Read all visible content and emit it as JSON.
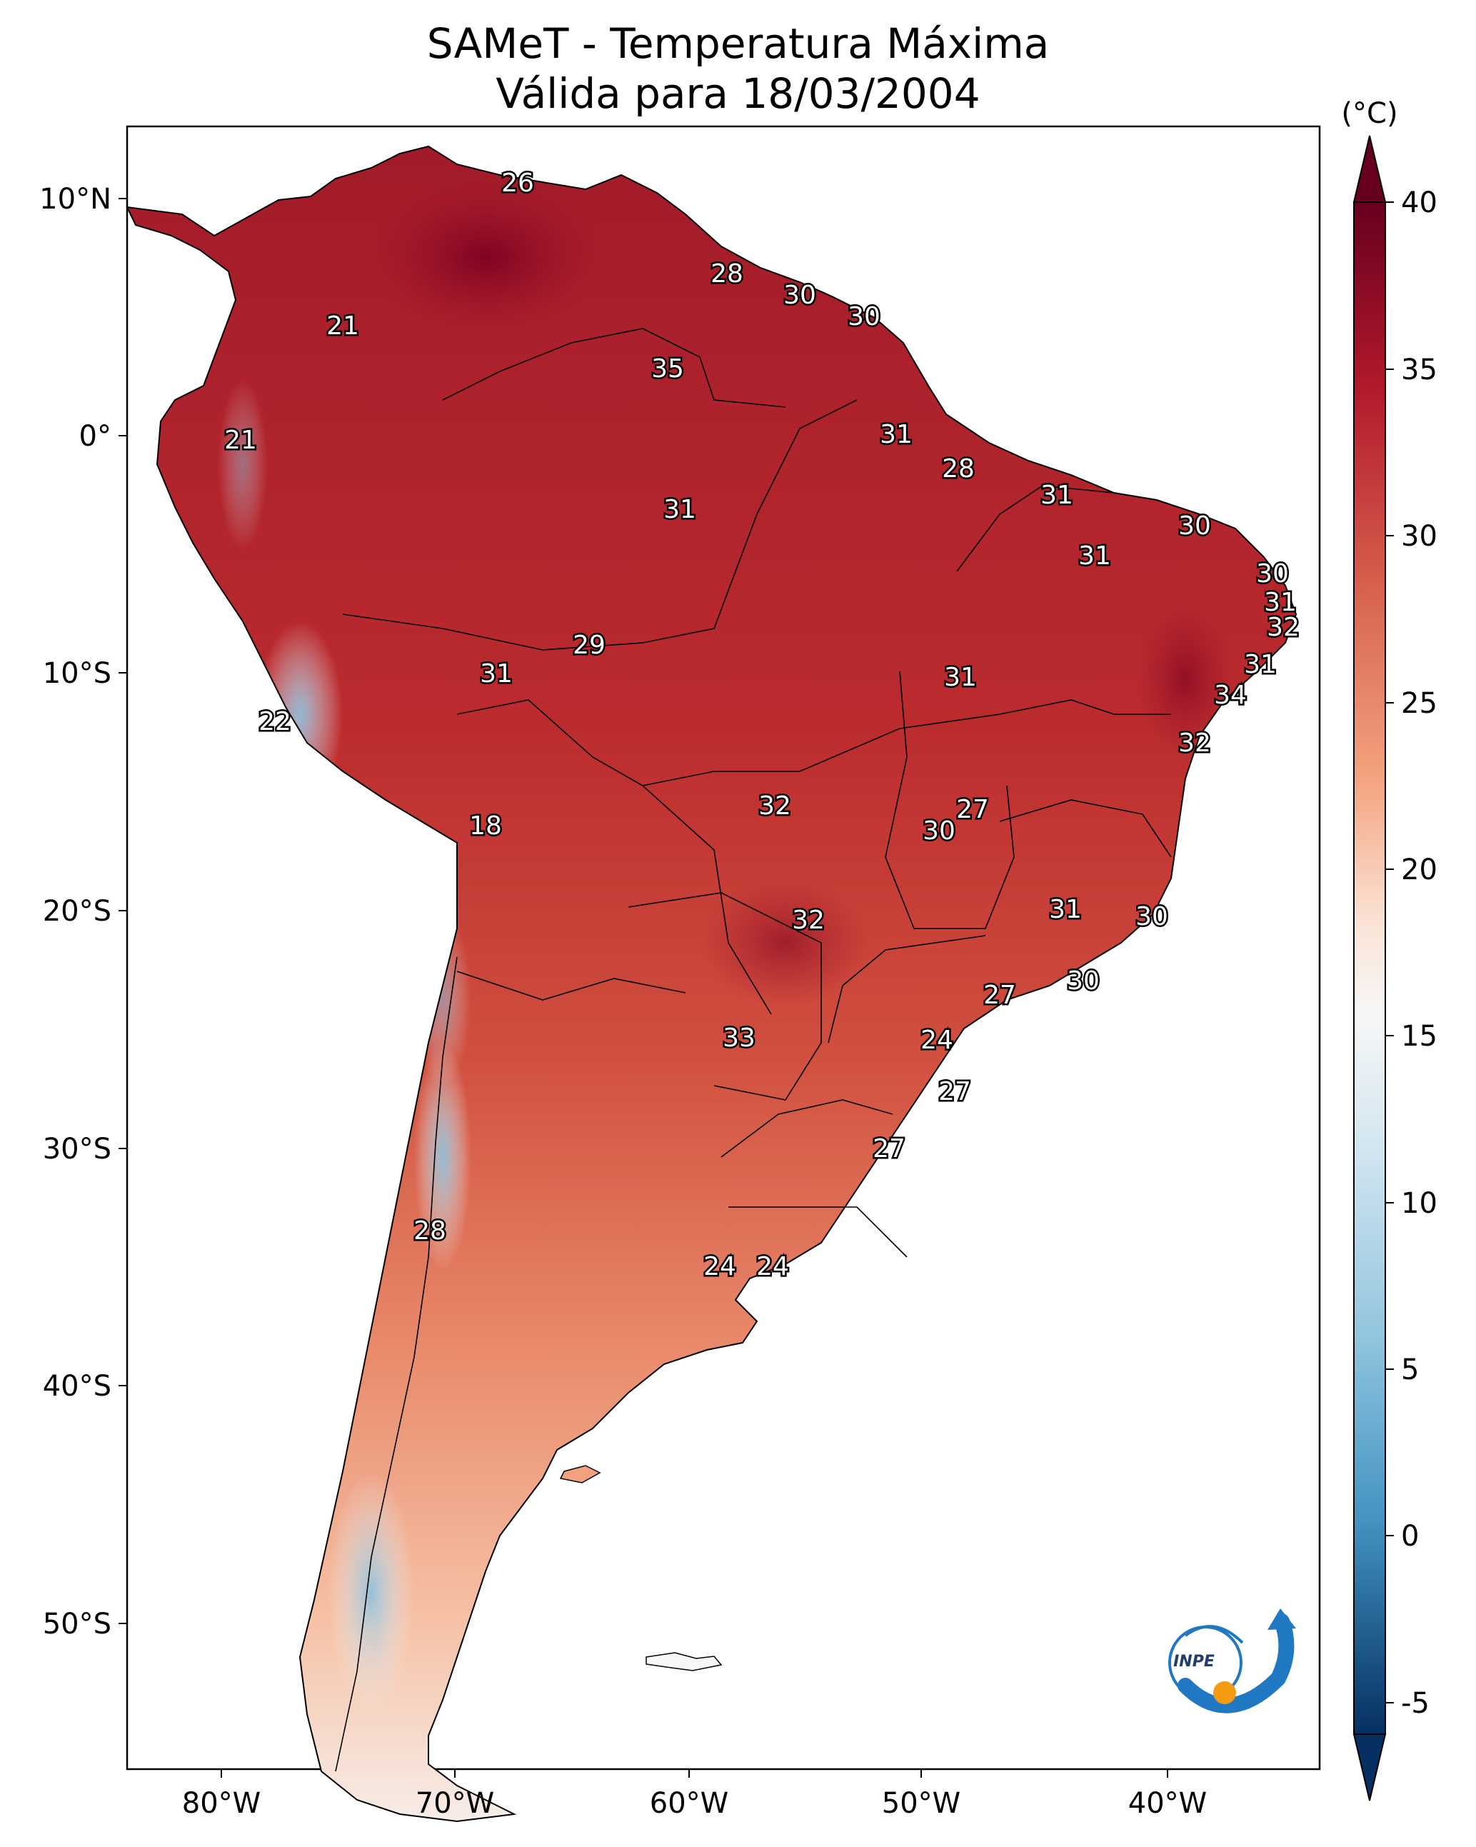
{
  "title_line1": "SAMeT - Temperatura Máxima",
  "title_line2": "Válida para 18/03/2004",
  "colorbar": {
    "unit": "(°C)",
    "ticks": [
      "40",
      "35",
      "30",
      "25",
      "20",
      "15",
      "10",
      "5",
      "0",
      "-5"
    ]
  },
  "axes": {
    "lat_ticks": [
      "10°N",
      "0°",
      "10°S",
      "20°S",
      "30°S",
      "40°S",
      "50°S"
    ],
    "lon_ticks": [
      "80°W",
      "70°W",
      "60°W",
      "50°W",
      "40°W"
    ]
  },
  "contour_labels": [
    "26",
    "28",
    "30",
    "30",
    "21",
    "35",
    "21",
    "31",
    "28",
    "31",
    "31",
    "30",
    "31",
    "30",
    "31",
    "32",
    "29",
    "31",
    "31",
    "31",
    "22",
    "34",
    "32",
    "32",
    "27",
    "18",
    "30",
    "31",
    "30",
    "32",
    "27",
    "30",
    "33",
    "24",
    "27",
    "27",
    "28",
    "24",
    "24"
  ],
  "logo": {
    "text": "INPE",
    "colors": {
      "blue": "#1f78c1",
      "orange": "#f39c12"
    }
  },
  "palette": {
    "hot": "#67001f",
    "warm": "#d6604d",
    "neutral": "#f7f7f7",
    "cool": "#4393c3",
    "cold": "#053061"
  }
}
